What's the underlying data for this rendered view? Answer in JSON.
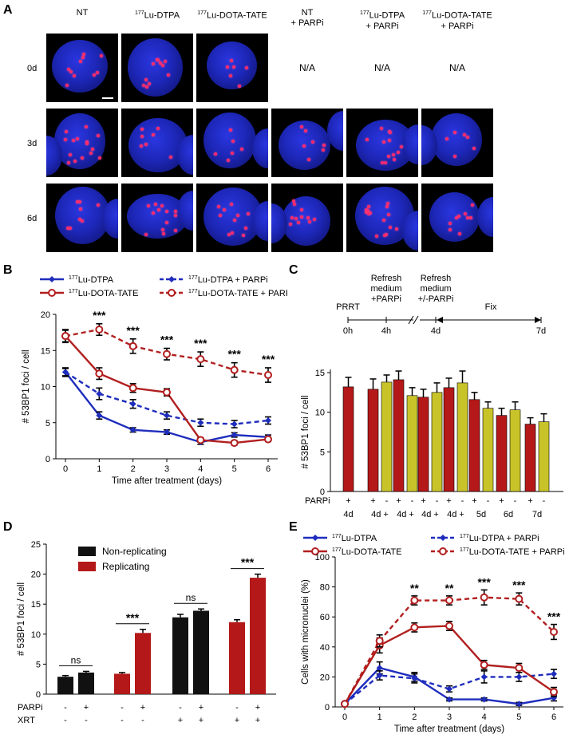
{
  "panels": {
    "A": "A",
    "B": "B",
    "C": "C",
    "D": "D",
    "E": "E"
  },
  "panel_a": {
    "columns": [
      {
        "sup": "",
        "main": "NT",
        "line2": ""
      },
      {
        "sup": "177",
        "main": "Lu-DTPA",
        "line2": ""
      },
      {
        "sup": "177",
        "main": "Lu-DOTA-TATE",
        "line2": ""
      },
      {
        "sup": "",
        "main": "NT",
        "line2": "+ PARPi"
      },
      {
        "sup": "177",
        "main": "Lu-DTPA",
        "line2": "+ PARPi"
      },
      {
        "sup": "177",
        "main": "Lu-DOTA-TATE",
        "line2": "+ PARPi"
      }
    ],
    "rows": [
      "0d",
      "3d",
      "6d"
    ],
    "na_label": "N/A",
    "colors": {
      "nucleus": "#1d27b8",
      "focus": "#ff2a6a"
    }
  },
  "chart_data": [
    {
      "id": "B",
      "type": "line",
      "xlabel": "Time after treatment (days)",
      "ylabel": "# 53BP1 foci / cell",
      "x": [
        0,
        1,
        2,
        3,
        4,
        5,
        6
      ],
      "ylim": [
        0,
        20
      ],
      "yticks": [
        0,
        5,
        10,
        15,
        20
      ],
      "legend_placement": "top",
      "series": [
        {
          "name": "Lu-DTPA",
          "sup": "177",
          "color": "#1f2dbd",
          "dashed": false,
          "marker": "diamond",
          "values": [
            12.0,
            6.0,
            4.0,
            3.7,
            2.3,
            3.3,
            3.0
          ],
          "err": [
            0.5,
            0.5,
            0.3,
            0.3,
            0.3,
            0.3,
            0.3
          ]
        },
        {
          "name": "Lu-DTPA + PARPi",
          "sup": "177",
          "color": "#1f2dbd",
          "dashed": true,
          "marker": "diamond",
          "values": [
            12.0,
            9.0,
            7.6,
            6.0,
            5.0,
            4.8,
            5.3
          ],
          "err": [
            0.6,
            0.8,
            0.6,
            0.5,
            0.5,
            0.5,
            0.5
          ]
        },
        {
          "name": "Lu-DOTA-TATE",
          "sup": "177",
          "color": "#b21f1f",
          "dashed": false,
          "marker": "circle",
          "values": [
            17.0,
            11.8,
            9.8,
            9.2,
            2.6,
            2.2,
            2.7
          ],
          "err": [
            0.8,
            0.8,
            0.6,
            0.5,
            0.3,
            0.3,
            0.3
          ]
        },
        {
          "name": "Lu-DOTA-TATE + PARPi",
          "sup": "177",
          "color": "#b21f1f",
          "dashed": true,
          "marker": "circle",
          "values": [
            17.0,
            17.9,
            15.6,
            14.5,
            13.8,
            12.3,
            11.6
          ],
          "err": [
            0.9,
            0.8,
            1.0,
            0.8,
            1.0,
            1.0,
            1.0
          ]
        }
      ],
      "annotations": [
        {
          "x": 1,
          "text": "***"
        },
        {
          "x": 2,
          "text": "***"
        },
        {
          "x": 3,
          "text": "***"
        },
        {
          "x": 4,
          "text": "***"
        },
        {
          "x": 5,
          "text": "***"
        },
        {
          "x": 6,
          "text": "***"
        }
      ]
    },
    {
      "id": "C",
      "type": "bar",
      "xlabel": "Time after treatment",
      "ylabel": "# 53BP1 foci / cell",
      "ylim": [
        0,
        15
      ],
      "yticks": [
        0,
        5,
        10,
        15
      ],
      "row_label": "PARPi",
      "colors": {
        "minus": "#b51818",
        "plus": "#c9c32a"
      },
      "groups": [
        {
          "label1": "4d",
          "label2": "",
          "bars": [
            {
              "parpi": "+",
              "value": 13.2,
              "err": 1.2,
              "color": "minus"
            }
          ]
        },
        {
          "label1": "4d +",
          "label2": "1h",
          "bars": [
            {
              "parpi": "+",
              "value": 12.9,
              "err": 1.3,
              "color": "minus"
            },
            {
              "parpi": "-",
              "value": 13.8,
              "err": 0.9,
              "color": "plus"
            }
          ]
        },
        {
          "label1": "4d +",
          "label2": "2h",
          "bars": [
            {
              "parpi": "+",
              "value": 14.1,
              "err": 1.1,
              "color": "minus"
            },
            {
              "parpi": "-",
              "value": 12.1,
              "err": 1.0,
              "color": "plus"
            }
          ]
        },
        {
          "label1": "4d +",
          "label2": "4h",
          "bars": [
            {
              "parpi": "+",
              "value": 11.9,
              "err": 1.0,
              "color": "minus"
            },
            {
              "parpi": "-",
              "value": 12.5,
              "err": 1.2,
              "color": "plus"
            }
          ]
        },
        {
          "label1": "4d +",
          "label2": "8h",
          "bars": [
            {
              "parpi": "+",
              "value": 13.1,
              "err": 1.2,
              "color": "minus"
            },
            {
              "parpi": "-",
              "value": 13.7,
              "err": 1.5,
              "color": "plus"
            }
          ]
        },
        {
          "label1": "5d",
          "label2": "",
          "bars": [
            {
              "parpi": "+",
              "value": 11.6,
              "err": 0.9,
              "color": "minus"
            },
            {
              "parpi": "-",
              "value": 10.5,
              "err": 0.8,
              "color": "plus"
            }
          ]
        },
        {
          "label1": "6d",
          "label2": "",
          "bars": [
            {
              "parpi": "+",
              "value": 9.6,
              "err": 0.9,
              "color": "minus"
            },
            {
              "parpi": "-",
              "value": 10.3,
              "err": 1.0,
              "color": "plus"
            }
          ]
        },
        {
          "label1": "7d",
          "label2": "",
          "bars": [
            {
              "parpi": "+",
              "value": 8.5,
              "err": 0.8,
              "color": "minus"
            },
            {
              "parpi": "-",
              "value": 8.8,
              "err": 1.0,
              "color": "plus"
            }
          ]
        }
      ],
      "timeline": {
        "ticks": [
          "0h",
          "4h",
          "4d",
          "7d"
        ],
        "above": [
          {
            "lines": [
              "PRRT"
            ]
          },
          {
            "lines": [
              "Refresh",
              "medium",
              "+PARPi"
            ]
          },
          {
            "lines": [
              "Refresh",
              "medium",
              "+/-PARPi"
            ]
          },
          {
            "lines": [
              "Fix"
            ]
          }
        ]
      }
    },
    {
      "id": "D",
      "type": "bar",
      "ylabel": "# 53BP1 foci / cell",
      "ylim": [
        0,
        25
      ],
      "yticks": [
        0,
        5,
        10,
        15,
        20,
        25
      ],
      "legend": [
        {
          "name": "Non-replicating",
          "color": "#111111"
        },
        {
          "name": "Replicating",
          "color": "#b51818"
        }
      ],
      "row_labels": [
        "PARPi",
        "XRT"
      ],
      "bars": [
        {
          "value": 2.9,
          "err": 0.2,
          "color": "#111111",
          "parpi": "-",
          "xrt": "-"
        },
        {
          "value": 3.6,
          "err": 0.2,
          "color": "#111111",
          "parpi": "+",
          "xrt": "-"
        },
        {
          "value": 3.4,
          "err": 0.2,
          "color": "#b51818",
          "parpi": "-",
          "xrt": "-"
        },
        {
          "value": 10.2,
          "err": 0.6,
          "color": "#b51818",
          "parpi": "+",
          "xrt": "-"
        },
        {
          "value": 12.8,
          "err": 0.5,
          "color": "#111111",
          "parpi": "-",
          "xrt": "+"
        },
        {
          "value": 13.9,
          "err": 0.3,
          "color": "#111111",
          "parpi": "+",
          "xrt": "+"
        },
        {
          "value": 12.0,
          "err": 0.4,
          "color": "#b51818",
          "parpi": "-",
          "xrt": "+"
        },
        {
          "value": 19.4,
          "err": 0.6,
          "color": "#b51818",
          "parpi": "+",
          "xrt": "+"
        }
      ],
      "annotations": [
        {
          "pair": [
            0,
            1
          ],
          "text": "ns"
        },
        {
          "pair": [
            2,
            3
          ],
          "text": "***"
        },
        {
          "pair": [
            4,
            5
          ],
          "text": "ns"
        },
        {
          "pair": [
            6,
            7
          ],
          "text": "***"
        }
      ]
    },
    {
      "id": "E",
      "type": "line",
      "xlabel": "Time after treatment (days)",
      "ylabel": "Cells with micronuclei (%)",
      "x": [
        0,
        1,
        2,
        3,
        4,
        5,
        6
      ],
      "ylim": [
        0,
        100
      ],
      "yticks": [
        0,
        20,
        40,
        60,
        80,
        100
      ],
      "legend_placement": "top",
      "series": [
        {
          "name": "Lu-DTPA",
          "sup": "177",
          "color": "#1f2dbd",
          "dashed": false,
          "marker": "diamond",
          "values": [
            2,
            26,
            20,
            5,
            5,
            2,
            6
          ],
          "err": [
            1,
            4,
            3,
            1,
            1,
            1,
            2
          ]
        },
        {
          "name": "Lu-DTPA + PARPi",
          "sup": "177",
          "color": "#1f2dbd",
          "dashed": true,
          "marker": "diamond",
          "values": [
            2,
            21,
            19,
            12,
            20,
            20,
            22
          ],
          "err": [
            1,
            3,
            3,
            2,
            4,
            3,
            3
          ]
        },
        {
          "name": "Lu-DOTA-TATE",
          "sup": "177",
          "color": "#b21f1f",
          "dashed": false,
          "marker": "circle",
          "values": [
            2,
            41,
            53,
            54,
            28,
            26,
            10
          ],
          "err": [
            1,
            5,
            3,
            3,
            3,
            3,
            3
          ]
        },
        {
          "name": "Lu-DOTA-TATE + PARPi",
          "sup": "177",
          "color": "#b21f1f",
          "dashed": true,
          "marker": "circle",
          "values": [
            2,
            44,
            71,
            71,
            73,
            72,
            50
          ],
          "err": [
            1,
            4,
            3,
            3,
            5,
            4,
            5
          ]
        }
      ],
      "annotations": [
        {
          "x": 2,
          "text": "**"
        },
        {
          "x": 3,
          "text": "**"
        },
        {
          "x": 4,
          "text": "***"
        },
        {
          "x": 5,
          "text": "***"
        },
        {
          "x": 6,
          "text": "***"
        }
      ]
    }
  ]
}
